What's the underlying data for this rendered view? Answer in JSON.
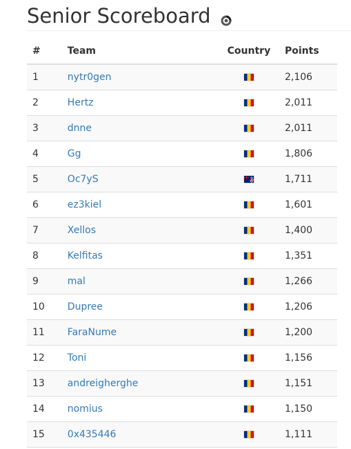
{
  "page": {
    "title": "Senior Scoreboard"
  },
  "table": {
    "headers": {
      "rank": "#",
      "team": "Team",
      "country": "Country",
      "points": "Points"
    },
    "rows": [
      {
        "rank": "1",
        "team": "nytr0gen",
        "flag": "romania-flag-icon",
        "points": "2,106"
      },
      {
        "rank": "2",
        "team": "Hertz",
        "flag": "romania-flag-icon",
        "points": "2,011"
      },
      {
        "rank": "3",
        "team": "dnne",
        "flag": "romania-flag-icon",
        "points": "2,011"
      },
      {
        "rank": "4",
        "team": "Gg",
        "flag": "romania-flag-icon",
        "points": "1,806"
      },
      {
        "rank": "5",
        "team": "Oc7yS",
        "flag": "new-zealand-flag-icon",
        "points": "1,711"
      },
      {
        "rank": "6",
        "team": "ez3kiel",
        "flag": "romania-flag-icon",
        "points": "1,601"
      },
      {
        "rank": "7",
        "team": "Xellos",
        "flag": "romania-flag-icon",
        "points": "1,400"
      },
      {
        "rank": "8",
        "team": "Kelfitas",
        "flag": "romania-flag-icon",
        "points": "1,351"
      },
      {
        "rank": "9",
        "team": "mal",
        "flag": "romania-flag-icon",
        "points": "1,266"
      },
      {
        "rank": "10",
        "team": "Dupree",
        "flag": "romania-flag-icon",
        "points": "1,206"
      },
      {
        "rank": "11",
        "team": "FaraNume",
        "flag": "romania-flag-icon",
        "points": "1,200"
      },
      {
        "rank": "12",
        "team": "Toni",
        "flag": "romania-flag-icon",
        "points": "1,156"
      },
      {
        "rank": "13",
        "team": "andreigherghe",
        "flag": "romania-flag-icon",
        "points": "1,151"
      },
      {
        "rank": "14",
        "team": "nomius",
        "flag": "romania-flag-icon",
        "points": "1,150"
      },
      {
        "rank": "15",
        "team": "0x435446",
        "flag": "romania-flag-icon",
        "points": "1,111"
      }
    ]
  },
  "colors": {
    "link": "#337ab7",
    "stripe": "#f9f9f9",
    "border": "#dddddd",
    "text": "#333333"
  },
  "icons": {
    "title_icon": "loading-spinner-icon"
  }
}
